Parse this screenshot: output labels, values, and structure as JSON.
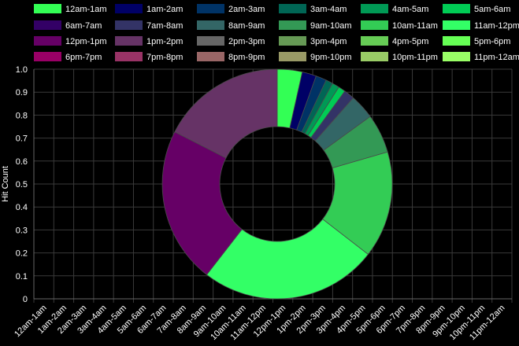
{
  "chart_data": {
    "type": "pie",
    "variant": "doughnut",
    "ylabel": "Hit Count",
    "ylim": [
      0,
      1.0
    ],
    "yticks": [
      "0",
      "0.1",
      "0.2",
      "0.3",
      "0.4",
      "0.5",
      "0.6",
      "0.7",
      "0.8",
      "0.9",
      "1.0"
    ],
    "grid": true,
    "legend_position": "top",
    "categories": [
      "12am-1am",
      "1am-2am",
      "2am-3am",
      "3am-4am",
      "4am-5am",
      "5am-6am",
      "6am-7am",
      "7am-8am",
      "8am-9am",
      "9am-10am",
      "10am-11am",
      "11am-12pm",
      "12pm-1pm",
      "1pm-2pm",
      "2pm-3pm",
      "3pm-4pm",
      "4pm-5pm",
      "5pm-6pm",
      "6pm-7pm",
      "7pm-8pm",
      "8pm-9pm",
      "9pm-10pm",
      "10pm-11pm",
      "11pm-12am"
    ],
    "colors": [
      "#33ff55",
      "#000066",
      "#003366",
      "#006655",
      "#009955",
      "#00cc55",
      "#330066",
      "#333366",
      "#336666",
      "#339955",
      "#33cc55",
      "#33ff66",
      "#660066",
      "#663366",
      "#666666",
      "#669955",
      "#66cc55",
      "#66ff55",
      "#990066",
      "#993366",
      "#996666",
      "#999966",
      "#99cc66",
      "#99ff66"
    ],
    "values": [
      3.5,
      2.0,
      1.5,
      1.0,
      1.0,
      1.0,
      0,
      1.5,
      3.5,
      5.5,
      15.0,
      25.0,
      22.0,
      17.5,
      0,
      0,
      0,
      0,
      0,
      0,
      0,
      0,
      0,
      0
    ]
  }
}
